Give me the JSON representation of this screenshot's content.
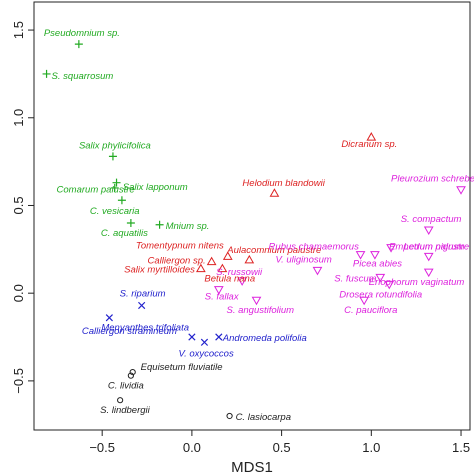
{
  "chart_data": {
    "type": "scatter",
    "title": "",
    "xlabel": "MDS1",
    "ylabel": "",
    "xlim": [
      -0.88,
      1.55
    ],
    "ylim": [
      -0.78,
      1.66
    ],
    "xticks": [
      -0.5,
      0.0,
      0.5,
      1.0,
      1.5
    ],
    "xtick_labels": [
      "−0.5",
      "0.0",
      "0.5",
      "1.0",
      "1.5"
    ],
    "yticks": [
      -0.5,
      0.0,
      0.5,
      1.0,
      1.5
    ],
    "ytick_labels": [
      "−0.5",
      "0.0",
      "0.5",
      "1.0",
      "1.5"
    ],
    "grid": false,
    "legend": "none",
    "series": [
      {
        "marker": "plus",
        "color": "#22aa22",
        "points": [
          {
            "label": "Pseudomnium sp.",
            "x": -0.63,
            "y": 1.42
          },
          {
            "label": "S. squarrosum",
            "x": -0.81,
            "y": 1.25
          },
          {
            "label": "Salix phylicifolica",
            "x": -0.44,
            "y": 0.78
          },
          {
            "label": "Comarum palustre",
            "x": -0.42,
            "y": 0.63
          },
          {
            "label": "Salix lapponum",
            "x": -0.43,
            "y": 0.6
          },
          {
            "label": "C. vesicaria",
            "x": -0.39,
            "y": 0.53
          },
          {
            "label": "C. aquatilis",
            "x": -0.34,
            "y": 0.4
          },
          {
            "label": "Mnium sp.",
            "x": -0.18,
            "y": 0.39
          }
        ]
      },
      {
        "marker": "triangle-up",
        "color": "#dd2222",
        "points": [
          {
            "label": "Dicranum sp.",
            "x": 1.0,
            "y": 0.89
          },
          {
            "label": "Helodium blandowii",
            "x": 0.46,
            "y": 0.57
          },
          {
            "label": "Tomentypnum nitens",
            "x": 0.2,
            "y": 0.21
          },
          {
            "label": "Aulacomnium palustre",
            "x": 0.32,
            "y": 0.19
          },
          {
            "label": "Calliergon sp.",
            "x": 0.11,
            "y": 0.18
          },
          {
            "label": "Salix myrtilloides",
            "x": 0.05,
            "y": 0.14
          },
          {
            "label": "Betula nana",
            "x": 0.17,
            "y": 0.14
          }
        ]
      },
      {
        "marker": "triangle-down",
        "color": "#dd22dd",
        "points": [
          {
            "label": "Pleurozium schreberi",
            "x": 1.5,
            "y": 0.59
          },
          {
            "label": "S. compactum",
            "x": 1.32,
            "y": 0.36
          },
          {
            "label": "Rubus chamaemorus",
            "x": 0.94,
            "y": 0.22
          },
          {
            "label": "Empetrum nigrum",
            "x": 1.11,
            "y": 0.26
          },
          {
            "label": "Ledum palustre",
            "x": 1.32,
            "y": 0.21
          },
          {
            "label": "Picea abies",
            "x": 1.02,
            "y": 0.22
          },
          {
            "label": "V. uliginosum",
            "x": 0.7,
            "y": 0.13
          },
          {
            "label": "Eriophorum vaginatum",
            "x": 1.32,
            "y": 0.12
          },
          {
            "label": "S. fuscum",
            "x": 1.05,
            "y": 0.09
          },
          {
            "label": "S. russowii",
            "x": 0.28,
            "y": 0.07
          },
          {
            "label": "Drosera rotundifolia",
            "x": 1.1,
            "y": 0.05
          },
          {
            "label": "S. fallax",
            "x": 0.15,
            "y": 0.02
          },
          {
            "label": "S. angustifolium",
            "x": 0.36,
            "y": -0.04
          },
          {
            "label": "C. pauciflora",
            "x": 0.96,
            "y": -0.04
          }
        ]
      },
      {
        "marker": "x",
        "color": "#2222cc",
        "points": [
          {
            "label": "S. riparium",
            "x": -0.28,
            "y": -0.07
          },
          {
            "label": "Menyanthes trifoliata",
            "x": -0.46,
            "y": -0.14
          },
          {
            "label": "Calliergon stramineum",
            "x": 0.0,
            "y": -0.25
          },
          {
            "label": "Andromeda polifolia",
            "x": 0.15,
            "y": -0.25
          },
          {
            "label": "V. oxycoccos",
            "x": 0.07,
            "y": -0.28
          }
        ]
      },
      {
        "marker": "circle",
        "color": "#222222",
        "points": [
          {
            "label": "Equisetum fluviatile",
            "x": -0.33,
            "y": -0.45
          },
          {
            "label": "C. lividia",
            "x": -0.34,
            "y": -0.47
          },
          {
            "label": "S. lindbergii",
            "x": -0.4,
            "y": -0.61
          },
          {
            "label": "C. lasiocarpa",
            "x": 0.21,
            "y": -0.7
          }
        ]
      }
    ]
  }
}
